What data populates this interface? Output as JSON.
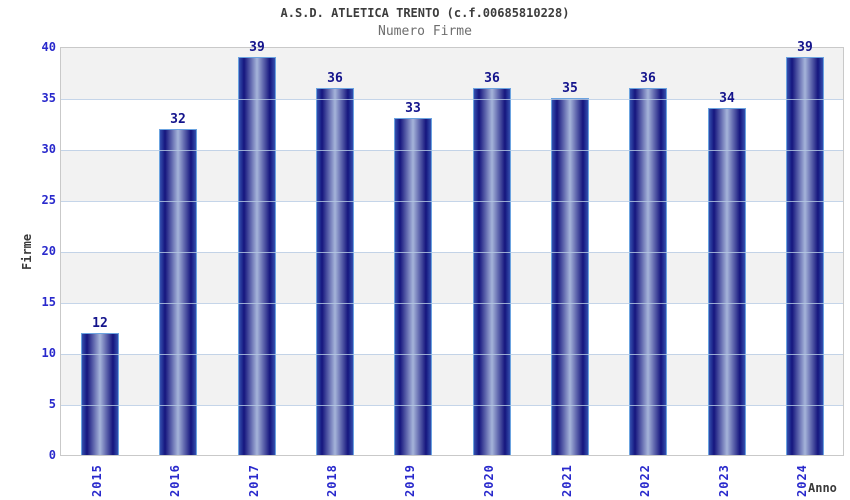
{
  "chart_data": {
    "type": "bar",
    "title": "A.S.D. ATLETICA TRENTO (c.f.00685810228)",
    "subtitle": "Numero Firme",
    "xlabel": "Anno",
    "ylabel": "Firme",
    "categories": [
      "2015",
      "2016",
      "2017",
      "2018",
      "2019",
      "2020",
      "2021",
      "2022",
      "2023",
      "2024"
    ],
    "values": [
      12,
      32,
      39,
      36,
      33,
      36,
      35,
      36,
      34,
      39
    ],
    "ylim": [
      0,
      40
    ],
    "yticks": [
      0,
      5,
      10,
      15,
      20,
      25,
      30,
      35,
      40
    ],
    "grid": "horizontal-bands-every-5",
    "legend": null,
    "colors": {
      "bar_dark": "#15157e",
      "bar_edge_mid": "#3450ae",
      "bar_center_light": "#a6b4da",
      "bar_outline": "#6ba3e0",
      "axis_tick_blue": "#2929cc",
      "value_label_navy": "#14148c",
      "band_gray": "#f2f2f2",
      "band_white": "#ffffff",
      "plot_border": "#c9c9c9",
      "gridline_over_bars": "rgba(182,202,228,0.8)",
      "title_color": "#3c3c3c",
      "subtitle_color": "#6e6e6e",
      "axis_title_color": "#3a3a3a"
    }
  }
}
